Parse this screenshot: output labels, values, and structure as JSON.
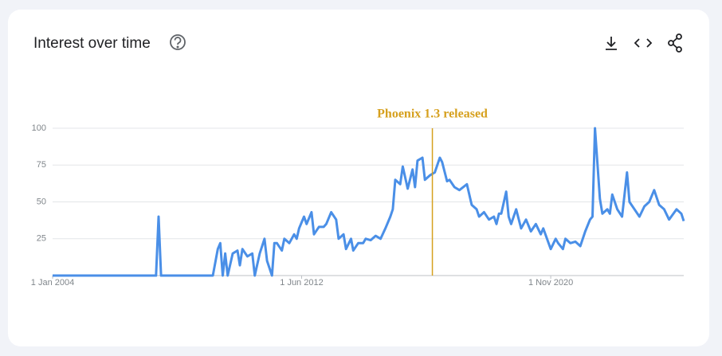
{
  "chart_data": {
    "type": "line",
    "title": "Interest over time",
    "x": [
      "2004-01-01",
      "2007-07-01",
      "2007-08-01",
      "2007-09-01",
      "2009-06-01",
      "2009-08-01",
      "2009-09-01",
      "2009-10-01",
      "2009-11-01",
      "2009-12-01",
      "2010-02-01",
      "2010-04-01",
      "2010-05-01",
      "2010-06-01",
      "2010-08-01",
      "2010-10-01",
      "2010-11-01",
      "2011-01-01",
      "2011-03-01",
      "2011-04-01",
      "2011-06-01",
      "2011-07-01",
      "2011-08-01",
      "2011-10-01",
      "2011-11-01",
      "2012-01-01",
      "2012-03-01",
      "2012-04-01",
      "2012-05-01",
      "2012-07-01",
      "2012-08-01",
      "2012-10-01",
      "2012-11-01",
      "2013-01-01",
      "2013-03-01",
      "2013-04-01",
      "2013-06-01",
      "2013-08-01",
      "2013-09-01",
      "2013-11-01",
      "2013-12-01",
      "2014-02-01",
      "2014-03-01",
      "2014-05-01",
      "2014-07-01",
      "2014-08-01",
      "2014-10-01",
      "2014-12-01",
      "2015-02-01",
      "2015-04-01",
      "2015-06-01",
      "2015-07-01",
      "2015-08-01",
      "2015-10-01",
      "2015-11-01",
      "2016-01-01",
      "2016-03-01",
      "2016-04-01",
      "2016-05-01",
      "2016-07-01",
      "2016-08-01",
      "2016-10-01",
      "2016-12-01",
      "2017-02-01",
      "2017-03-01",
      "2017-05-01",
      "2017-06-01",
      "2017-08-01",
      "2017-10-01",
      "2018-01-01",
      "2018-03-01",
      "2018-05-01",
      "2018-06-01",
      "2018-08-01",
      "2018-10-01",
      "2018-12-01",
      "2019-01-01",
      "2019-02-01",
      "2019-03-01",
      "2019-05-01",
      "2019-06-01",
      "2019-07-01",
      "2019-09-01",
      "2019-11-01",
      "2020-01-01",
      "2020-03-01",
      "2020-05-01",
      "2020-07-01",
      "2020-08-01",
      "2020-11-01",
      "2021-01-01",
      "2021-02-01",
      "2021-04-01",
      "2021-05-01",
      "2021-07-01",
      "2021-09-01",
      "2021-11-01",
      "2022-01-01",
      "2022-03-01",
      "2022-04-01",
      "2022-05-01",
      "2022-07-01",
      "2022-08-01",
      "2022-10-01",
      "2022-11-01",
      "2022-12-01",
      "2023-02-01",
      "2023-04-01",
      "2023-06-01",
      "2023-07-01",
      "2023-09-01",
      "2023-11-01",
      "2024-01-01",
      "2024-03-01",
      "2024-05-01",
      "2024-07-01",
      "2024-09-01",
      "2024-11-01",
      "2025-02-01",
      "2025-04-01",
      "2025-05-01"
    ],
    "values": [
      0,
      0,
      40,
      0,
      0,
      18,
      22,
      0,
      15,
      0,
      15,
      17,
      7,
      18,
      13,
      15,
      0,
      15,
      25,
      10,
      0,
      22,
      22,
      17,
      25,
      22,
      28,
      25,
      32,
      40,
      35,
      43,
      28,
      33,
      33,
      35,
      43,
      38,
      25,
      28,
      18,
      25,
      17,
      22,
      22,
      25,
      24,
      27,
      25,
      32,
      40,
      45,
      65,
      62,
      74,
      59,
      72,
      60,
      78,
      80,
      65,
      68,
      70,
      80,
      77,
      64,
      65,
      60,
      58,
      62,
      48,
      45,
      40,
      43,
      38,
      40,
      35,
      42,
      42,
      57,
      40,
      35,
      45,
      32,
      38,
      30,
      35,
      28,
      32,
      18,
      25,
      22,
      18,
      25,
      22,
      23,
      20,
      30,
      38,
      40,
      100,
      52,
      42,
      45,
      42,
      55,
      45,
      40,
      70,
      50,
      45,
      40,
      47,
      50,
      58,
      48,
      45,
      38,
      45,
      42,
      37
    ],
    "color": "#4a8fe7",
    "xlim": [
      "2004-01-01",
      "2025-05-01"
    ],
    "xticks": [
      {
        "value": "2004-01-01",
        "label": "1 Jan 2004"
      },
      {
        "value": "2012-06-01",
        "label": "1 Jun 2012"
      },
      {
        "value": "2020-11-01",
        "label": "1 Nov 2020"
      }
    ],
    "ylim": [
      0,
      100
    ],
    "yticks": [
      25,
      50,
      75,
      100
    ],
    "grid": true,
    "annotations": [
      {
        "x": "2016-11-01",
        "text": "Phoenix 1.3 released",
        "color": "#d6a01e"
      }
    ]
  }
}
